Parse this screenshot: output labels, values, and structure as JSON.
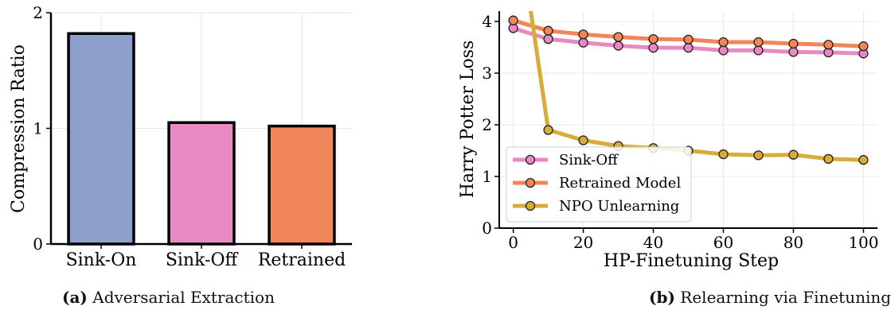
{
  "chart_data": [
    {
      "type": "bar",
      "ylabel": "Compression Ratio",
      "categories": [
        "Sink-On",
        "Sink-Off",
        "Retrained"
      ],
      "values": [
        1.82,
        1.05,
        1.02
      ],
      "colors": [
        "#8da0cb",
        "#e78ac3",
        "#f0865a"
      ],
      "ylim": [
        0,
        2
      ],
      "yticks": [
        0,
        1,
        2
      ],
      "grid": true,
      "caption_label": "(a)",
      "caption_text": "Adversarial Extraction"
    },
    {
      "type": "line",
      "xlabel": "HP-Finetuning Step",
      "ylabel": "Harry Potter Loss",
      "xlim": [
        -4,
        104
      ],
      "ylim": [
        0,
        4.2
      ],
      "xticks": [
        0,
        20,
        40,
        60,
        80,
        100
      ],
      "yticks": [
        0,
        1,
        2,
        3,
        4
      ],
      "grid": true,
      "legend_position": "lower-left",
      "series": [
        {
          "name": "Sink-Off",
          "color": "#e78ac3",
          "x": [
            0,
            10,
            20,
            30,
            40,
            50,
            60,
            70,
            80,
            90,
            100
          ],
          "y": [
            3.87,
            3.66,
            3.59,
            3.53,
            3.49,
            3.49,
            3.44,
            3.44,
            3.41,
            3.4,
            3.38
          ]
        },
        {
          "name": "Retrained Model",
          "color": "#f0865a",
          "x": [
            0,
            10,
            20,
            30,
            40,
            50,
            60,
            70,
            80,
            90,
            100
          ],
          "y": [
            4.02,
            3.82,
            3.75,
            3.7,
            3.66,
            3.65,
            3.6,
            3.6,
            3.57,
            3.55,
            3.52
          ]
        },
        {
          "name": "NPO Unlearning",
          "color": "#d6ac3a",
          "x": [
            0,
            10,
            20,
            30,
            40,
            50,
            60,
            70,
            80,
            90,
            100
          ],
          "y": [
            6.5,
            1.9,
            1.7,
            1.59,
            1.55,
            1.5,
            1.43,
            1.41,
            1.42,
            1.34,
            1.32
          ],
          "unmarked_points": [
            0
          ]
        }
      ],
      "caption_label": "(b)",
      "caption_text": "Relearning via Finetuning"
    }
  ]
}
